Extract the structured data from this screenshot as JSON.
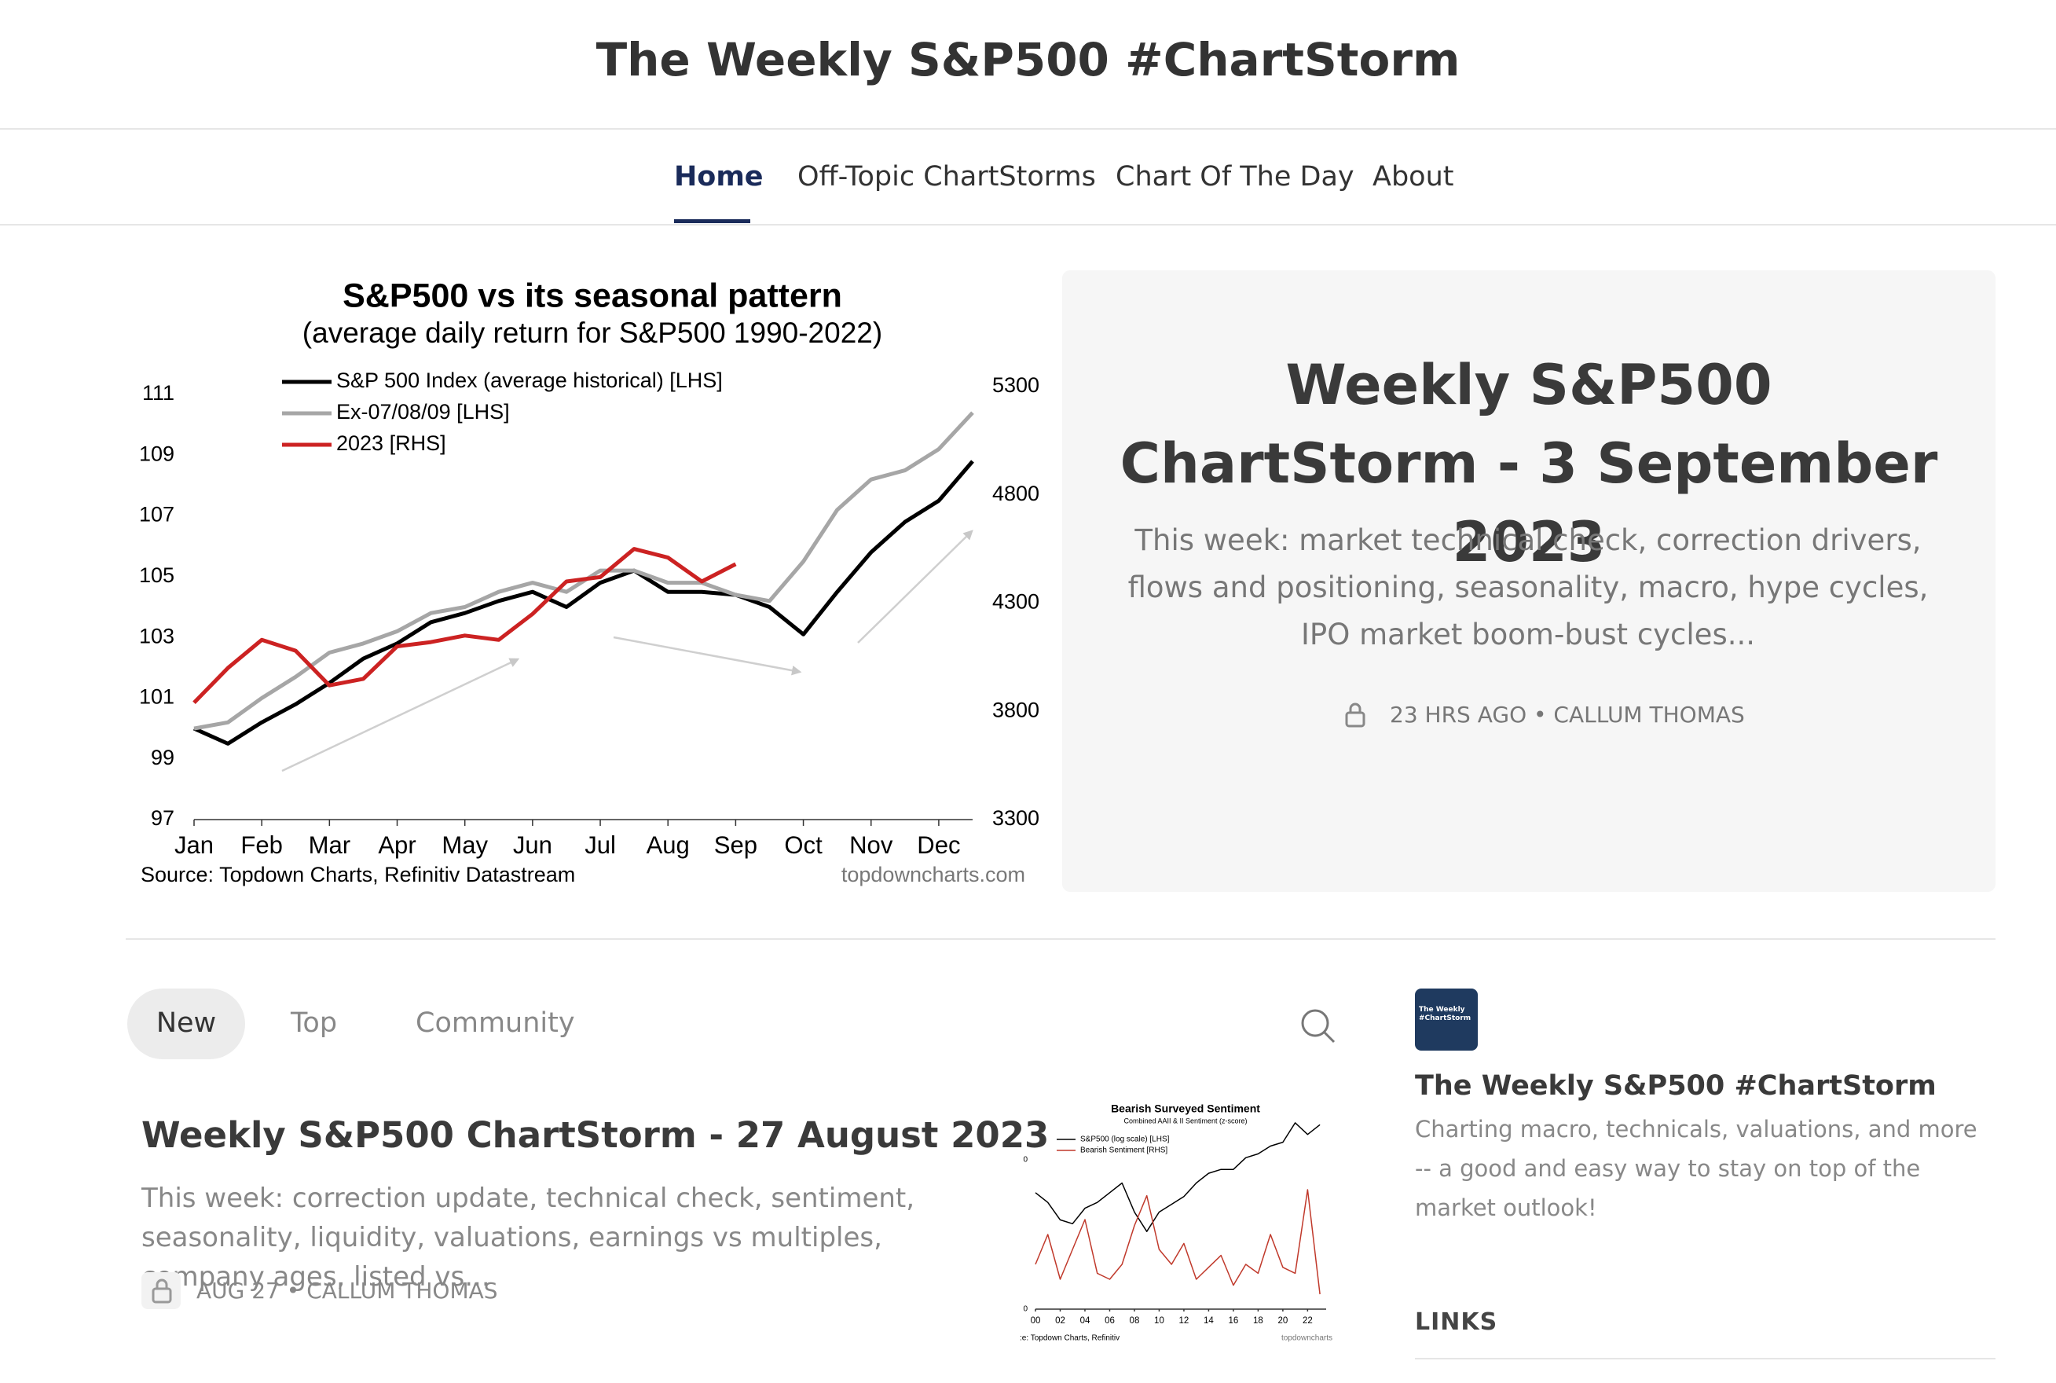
{
  "header": {
    "title": "The Weekly S&P500 #ChartStorm"
  },
  "nav": [
    "Home",
    "Off-Topic ChartStorms",
    "Chart Of The Day",
    "About"
  ],
  "featured": {
    "title": "Weekly S&P500 ChartStorm - 3 September 2023",
    "description": "This week: market technical check, correction drivers, flows and positioning, seasonality, macro, hype cycles, IPO market boom-bust cycles...",
    "meta": "23 HRS AGO • CALLUM THOMAS"
  },
  "tabs": [
    "New",
    "Top",
    "Community"
  ],
  "posts": [
    {
      "title": "Weekly S&P500 ChartStorm - 27 August 2023",
      "description": "This week: correction update, technical check, sentiment, seasonality, liquidity, valuations, earnings vs multiples, company ages, listed vs...",
      "meta": "AUG 27 • CALLUM THOMAS"
    }
  ],
  "sidebar": {
    "logo": "The Weekly #ChartStorm",
    "title": "The Weekly S&P500 #ChartStorm",
    "description": "Charting macro, technicals, valuations, and more -- a good and easy way to stay on top of the market outlook!",
    "links": "LINKS"
  },
  "chart_data": [
    {
      "type": "line",
      "title": "S&P500 vs its seasonal pattern",
      "subtitle": "(average daily return for S&P500 1990-2022)",
      "x": [
        0,
        0.5,
        1,
        1.5,
        2,
        2.5,
        3,
        3.5,
        4,
        4.5,
        5,
        5.5,
        6,
        6.5,
        7,
        7.5,
        8,
        8.5,
        9,
        9.5,
        10,
        10.5,
        11,
        11.5
      ],
      "xlim": [
        0,
        11.5
      ],
      "xticks": [
        {
          "value": 0,
          "label": "Jan"
        },
        {
          "value": 1,
          "label": "Feb"
        },
        {
          "value": 2,
          "label": "Mar"
        },
        {
          "value": 3,
          "label": "Apr"
        },
        {
          "value": 4,
          "label": "May"
        },
        {
          "value": 5,
          "label": "Jun"
        },
        {
          "value": 6,
          "label": "Jul"
        },
        {
          "value": 7,
          "label": "Aug"
        },
        {
          "value": 8,
          "label": "Sep"
        },
        {
          "value": 9,
          "label": "Oct"
        },
        {
          "value": 10,
          "label": "Nov"
        },
        {
          "value": 11,
          "label": "Dec"
        }
      ],
      "ylim": [
        97,
        111
      ],
      "yticks": [
        97,
        99,
        101,
        103,
        105,
        107,
        109,
        111
      ],
      "y2lim": [
        3300,
        5300
      ],
      "y2ticks": [
        3300,
        3800,
        4300,
        4800,
        5300
      ],
      "series": [
        {
          "name": "S&P 500 Index (average historical) [LHS]",
          "color": "#000000",
          "values": [
            100,
            99.5,
            100.2,
            100.8,
            101.5,
            102.3,
            102.8,
            103.5,
            103.8,
            104.2,
            104.5,
            104.0,
            104.8,
            105.2,
            104.5,
            104.5,
            104.4,
            104.0,
            103.1,
            104.5,
            105.8,
            106.8,
            107.5,
            108.8
          ]
        },
        {
          "name": "Ex-07/08/09 [LHS]",
          "color": "#a6a6a6",
          "values": [
            100,
            100.2,
            101,
            101.7,
            102.5,
            102.8,
            103.2,
            103.8,
            104.0,
            104.5,
            104.8,
            104.5,
            105.2,
            105.2,
            104.8,
            104.8,
            104.4,
            104.2,
            105.5,
            107.2,
            108.2,
            108.5,
            109.2,
            110.4
          ]
        },
        {
          "name": "2023 [RHS]",
          "color": "#cc2222",
          "axis": "y2",
          "values": [
            3840,
            4000,
            4130,
            4080,
            3920,
            3950,
            4100,
            4120,
            4150,
            4130,
            4250,
            4400,
            4420,
            4550,
            4510,
            4400,
            4480,
            null,
            null,
            null,
            null,
            null,
            null,
            null
          ]
        }
      ],
      "source": "Source: Topdown Charts, Refinitiv Datastream",
      "watermark": "topdowncharts.com"
    },
    {
      "type": "line",
      "title": "Bearish Surveyed Sentiment",
      "subtitle": "Combined AAII & II Sentiment (z-score)",
      "x": [
        2000,
        2001,
        2002,
        2003,
        2004,
        2005,
        2006,
        2007,
        2008,
        2009,
        2010,
        2011,
        2012,
        2013,
        2014,
        2015,
        2016,
        2017,
        2018,
        2019,
        2020,
        2021,
        2022,
        2023
      ],
      "xlim": [
        2000,
        2023.5
      ],
      "xticks": [
        {
          "value": 2000,
          "label": "00"
        },
        {
          "value": 2002,
          "label": "02"
        },
        {
          "value": 2004,
          "label": "04"
        },
        {
          "value": 2006,
          "label": "06"
        },
        {
          "value": 2008,
          "label": "08"
        },
        {
          "value": 2010,
          "label": "10"
        },
        {
          "value": 2012,
          "label": "12"
        },
        {
          "value": 2014,
          "label": "14"
        },
        {
          "value": 2016,
          "label": "16"
        },
        {
          "value": 2018,
          "label": "18"
        },
        {
          "value": 2020,
          "label": "20"
        },
        {
          "value": 2022,
          "label": "22"
        }
      ],
      "ylim": [
        0,
        10
      ],
      "yticks": [
        0
      ],
      "y2lim": [
        -5,
        1.5
      ],
      "y2ticks": [
        0
      ],
      "series": [
        {
          "name": "S&P500 (log scale) [LHS]",
          "color": "#000000",
          "values": [
            6.0,
            5.5,
            4.6,
            4.4,
            5.2,
            5.5,
            6.0,
            6.5,
            5.0,
            4.0,
            5.0,
            5.4,
            5.8,
            6.5,
            7.0,
            7.2,
            7.2,
            7.8,
            8.0,
            8.4,
            8.6,
            9.6,
            9.0,
            9.5
          ]
        },
        {
          "name": "Bearish Sentiment [RHS]",
          "color": "#c0392b",
          "axis": "y2",
          "values": [
            -3.5,
            -2.5,
            -4,
            -3,
            -2,
            -3.8,
            -4,
            -3.5,
            -2.2,
            -1.2,
            -3,
            -3.5,
            -2.8,
            -4,
            -3.6,
            -3.2,
            -4.2,
            -3.5,
            -3.8,
            -2.5,
            -3.6,
            -3.8,
            -1.0,
            -4.5
          ]
        }
      ],
      "source": ":e: Topdown Charts, Refinitiv",
      "watermark": "topdowncharts"
    }
  ]
}
